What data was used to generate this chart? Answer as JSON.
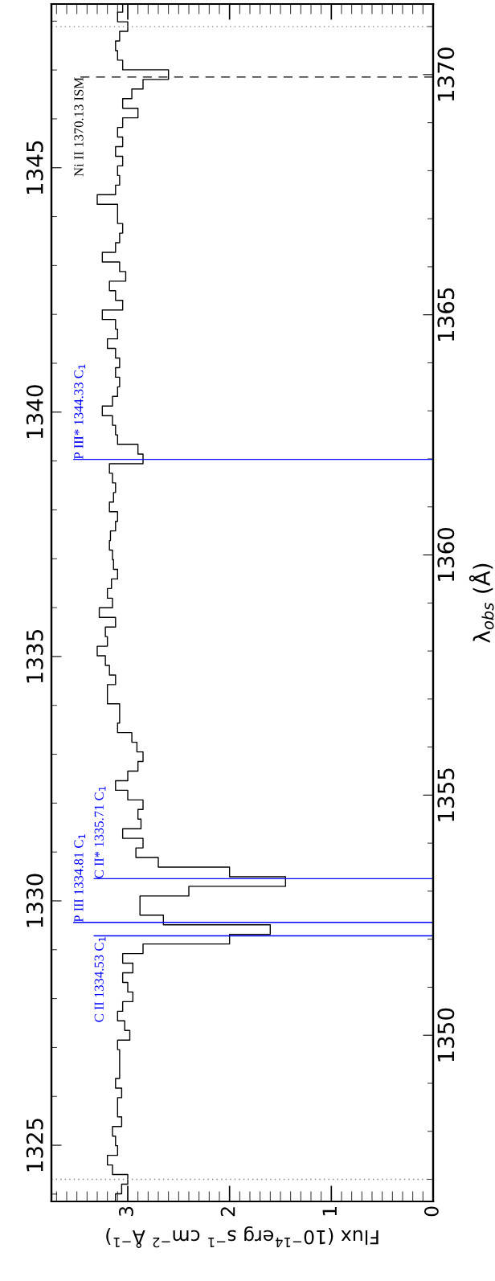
{
  "chart_data": {
    "type": "line",
    "xlabel": "Flux (10$^{−14}$erg s$^{−1}$ cm$^{−2}$ Å$^{−1}$)",
    "ylabel": "λ$_{obs}$ (Å)",
    "xlim": [
      3.75,
      0
    ],
    "xticks": [
      3,
      2,
      1,
      0
    ],
    "ylim": [
      1346.54,
      1371.47
    ],
    "yticks": [
      1350,
      1355,
      1360,
      1365,
      1370
    ],
    "y2lim": [
      1323.85,
      1348.35
    ],
    "y2ticks": [
      1325,
      1330,
      1335,
      1340,
      1345
    ],
    "series": [
      {
        "color": "#000000",
        "x": [
          3.12,
          3.12,
          3.06,
          3.06,
          3.0,
          3.0,
          3.15,
          3.15,
          3.2,
          3.2,
          3.1,
          3.1,
          3.12,
          3.12,
          3.15,
          3.15,
          3.06,
          3.06,
          3.1,
          3.1,
          3.1,
          3.1,
          3.06,
          3.06,
          3.12,
          3.12,
          3.08,
          3.08,
          3.08,
          3.08,
          3.08,
          3.08,
          3.1,
          3.1,
          2.98,
          2.98,
          3.03,
          3.03,
          3.1,
          3.1,
          3.05,
          3.05,
          2.95,
          2.95,
          3.0,
          3.0,
          3.05,
          3.05,
          2.95,
          2.95,
          3.05,
          3.05,
          2.85,
          2.85,
          2.0,
          2.0,
          1.6,
          1.6,
          2.65,
          2.65,
          2.88,
          2.88,
          2.88,
          2.88,
          2.4,
          2.4,
          1.45,
          1.45,
          2.0,
          2.0,
          2.7,
          2.7,
          2.92,
          2.92,
          2.85,
          2.85,
          3.05,
          3.05,
          2.87,
          2.87,
          2.9,
          2.9,
          2.85,
          2.85,
          3.0,
          3.0,
          3.12,
          3.12,
          3.0,
          3.0,
          2.9,
          2.9,
          2.85,
          2.85,
          2.91,
          2.91,
          2.96,
          2.96,
          3.1,
          3.1,
          3.08,
          3.08,
          3.08,
          3.08,
          3.2,
          3.2,
          3.2,
          3.2,
          3.12,
          3.12,
          3.18,
          3.18,
          3.22,
          3.22,
          3.3,
          3.3,
          3.2,
          3.2,
          3.22,
          3.22,
          3.12,
          3.12,
          3.28,
          3.28,
          3.15,
          3.15,
          3.2,
          3.2,
          3.16,
          3.16,
          3.1,
          3.1,
          3.14,
          3.14,
          3.15,
          3.15,
          3.18,
          3.18,
          3.17,
          3.17,
          3.12,
          3.12,
          3.1,
          3.1,
          3.18,
          3.18,
          3.14,
          3.14,
          3.12,
          3.12,
          3.15,
          3.15,
          3.18,
          3.18,
          2.85,
          2.85,
          2.9,
          2.9,
          3.1,
          3.1,
          3.12,
          3.12,
          3.15,
          3.15,
          3.25,
          3.25,
          3.15,
          3.15,
          3.1,
          3.1,
          3.08,
          3.08,
          3.12,
          3.12,
          3.08,
          3.08,
          3.12,
          3.12,
          3.2,
          3.2,
          3.1,
          3.1,
          3.12,
          3.12,
          3.25,
          3.25,
          3.05,
          3.05,
          3.12,
          3.12,
          3.18,
          3.18,
          3.02,
          3.02,
          3.08,
          3.08,
          3.25,
          3.25,
          3.12,
          3.12,
          3.08,
          3.08,
          3.05,
          3.05,
          3.1,
          3.1,
          3.1,
          3.1,
          3.3,
          3.3,
          3.12,
          3.12,
          3.08,
          3.08,
          3.1,
          3.1,
          3.05,
          3.05,
          3.12,
          3.12,
          3.05,
          3.05,
          3.1,
          3.1,
          3.05,
          3.05,
          2.9,
          2.9,
          3.05,
          3.05,
          2.96,
          2.96,
          2.85,
          2.85,
          2.6,
          2.6,
          3.05,
          3.05,
          3.1,
          3.1,
          3.12,
          3.12,
          3.08,
          3.08,
          3.0,
          3.0,
          3.1,
          3.1,
          3.05,
          3.05
        ],
        "values": [
          1346.55,
          1346.7,
          1346.7,
          1346.9,
          1346.9,
          1347.1,
          1347.1,
          1347.3,
          1347.3,
          1347.5,
          1347.5,
          1347.7,
          1347.7,
          1347.9,
          1347.9,
          1348.1,
          1348.1,
          1348.3,
          1348.3,
          1348.5,
          1348.5,
          1348.7,
          1348.7,
          1348.9,
          1348.9,
          1349.1,
          1349.1,
          1349.3,
          1349.3,
          1349.5,
          1349.5,
          1349.7,
          1349.7,
          1349.9,
          1349.9,
          1350.1,
          1350.1,
          1350.3,
          1350.3,
          1350.5,
          1350.5,
          1350.7,
          1350.7,
          1350.9,
          1350.9,
          1351.1,
          1351.1,
          1351.3,
          1351.3,
          1351.5,
          1351.5,
          1351.7,
          1351.7,
          1351.9,
          1351.9,
          1352.1,
          1352.1,
          1352.3,
          1352.3,
          1352.5,
          1352.5,
          1352.7,
          1352.7,
          1352.9,
          1352.9,
          1353.1,
          1353.1,
          1353.3,
          1353.3,
          1353.5,
          1353.5,
          1353.7,
          1353.7,
          1353.9,
          1353.9,
          1354.1,
          1354.1,
          1354.3,
          1354.3,
          1354.5,
          1354.5,
          1354.7,
          1354.7,
          1354.9,
          1354.9,
          1355.1,
          1355.1,
          1355.3,
          1355.3,
          1355.5,
          1355.5,
          1355.7,
          1355.7,
          1355.9,
          1355.9,
          1356.1,
          1356.1,
          1356.3,
          1356.3,
          1356.5,
          1356.5,
          1356.7,
          1356.7,
          1356.9,
          1356.9,
          1357.1,
          1357.1,
          1357.3,
          1357.3,
          1357.5,
          1357.5,
          1357.7,
          1357.7,
          1357.9,
          1357.9,
          1358.1,
          1358.1,
          1358.3,
          1358.3,
          1358.5,
          1358.5,
          1358.7,
          1358.7,
          1358.9,
          1358.9,
          1359.1,
          1359.1,
          1359.3,
          1359.3,
          1359.5,
          1359.5,
          1359.7,
          1359.7,
          1359.9,
          1359.9,
          1360.1,
          1360.1,
          1360.3,
          1360.3,
          1360.5,
          1360.5,
          1360.7,
          1360.7,
          1360.9,
          1360.9,
          1361.1,
          1361.1,
          1361.3,
          1361.3,
          1361.5,
          1361.5,
          1361.7,
          1361.7,
          1361.9,
          1361.9,
          1362.1,
          1362.1,
          1362.3,
          1362.3,
          1362.5,
          1362.5,
          1362.7,
          1362.7,
          1362.9,
          1362.9,
          1363.1,
          1363.1,
          1363.3,
          1363.3,
          1363.5,
          1363.5,
          1363.7,
          1363.7,
          1363.9,
          1363.9,
          1364.1,
          1364.1,
          1364.3,
          1364.3,
          1364.5,
          1364.5,
          1364.7,
          1364.7,
          1364.9,
          1364.9,
          1365.1,
          1365.1,
          1365.3,
          1365.3,
          1365.5,
          1365.5,
          1365.7,
          1365.7,
          1365.9,
          1365.9,
          1366.1,
          1366.1,
          1366.3,
          1366.3,
          1366.5,
          1366.5,
          1366.7,
          1366.7,
          1366.9,
          1366.9,
          1367.1,
          1367.1,
          1367.3,
          1367.3,
          1367.5,
          1367.5,
          1367.7,
          1367.7,
          1367.9,
          1367.9,
          1368.1,
          1368.1,
          1368.3,
          1368.3,
          1368.5,
          1368.5,
          1368.7,
          1368.7,
          1368.9,
          1368.9,
          1369.1,
          1369.1,
          1369.3,
          1369.3,
          1369.5,
          1369.5,
          1369.7,
          1369.7,
          1369.9,
          1369.9,
          1370.1,
          1370.1,
          1370.3,
          1370.3,
          1370.5,
          1370.5,
          1370.7,
          1370.7,
          1370.9,
          1370.9,
          1371.1,
          1371.1,
          1371.3,
          1371.3,
          1371.45
        ]
      }
    ],
    "ref_lines": [
      {
        "axis": "y",
        "value": 1352.07,
        "label": "C II 1334.53 C$_{1}$",
        "color": "#0000ff",
        "line_style": "solid"
      },
      {
        "axis": "y",
        "value": 1352.35,
        "label": "P III 1334.81 C$_{1}$",
        "color": "#0000ff",
        "line_style": "solid"
      },
      {
        "axis": "y",
        "value": 1353.26,
        "label": "C II* 1335.71 C$_{1}$",
        "color": "#0000ff",
        "line_style": "solid"
      },
      {
        "axis": "y",
        "value": 1361.99,
        "label": "P III* 1344.33 C$_{1}$",
        "color": "#0000ff",
        "line_style": "solid"
      },
      {
        "axis": "y",
        "value": 1369.95,
        "label": "Ni II 1370.13 ISM",
        "color": "#000000",
        "line_style": "dashed"
      },
      {
        "axis": "y",
        "value": 1347.0,
        "color": "#808080",
        "line_style": "dotted"
      },
      {
        "axis": "y",
        "value": 1371.0,
        "color": "#808080",
        "line_style": "dotted"
      }
    ],
    "grid": false,
    "legend": false
  }
}
